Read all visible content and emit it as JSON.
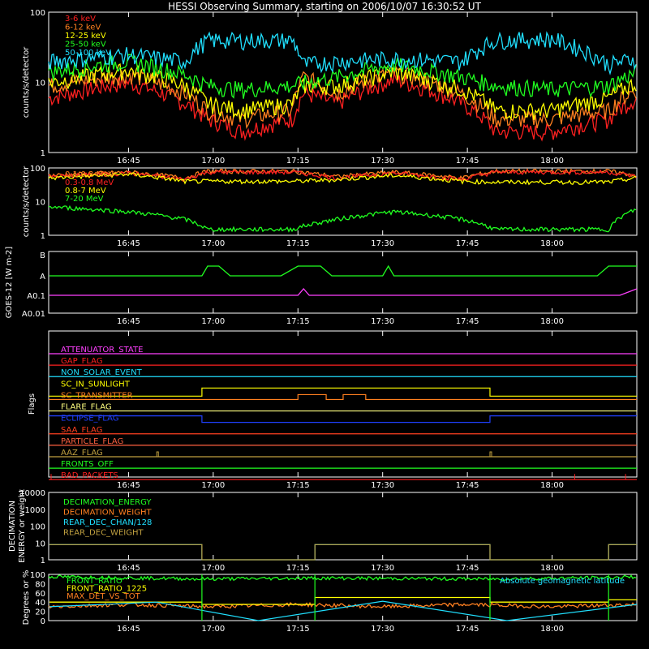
{
  "title": "HESSI Observing Summary, starting on 2006/10/07 16:30:52 UT",
  "time_ticks": [
    "16:45",
    "17:00",
    "17:15",
    "17:30",
    "17:45",
    "18:00"
  ],
  "chart_data": [
    {
      "type": "line",
      "ylabel": "counts/s/detector",
      "y_scale": "log",
      "ylim": [
        1,
        100
      ],
      "ytick_labels": [
        "1",
        "10",
        "100"
      ],
      "legend_placement": "top-left",
      "series": [
        {
          "name": "3-6 keV",
          "color": "#ff2020",
          "x": [
            "16:31",
            "16:45",
            "16:55",
            "16:59",
            "17:05",
            "17:14",
            "17:16",
            "17:22",
            "17:32",
            "17:44",
            "17:50",
            "18:00",
            "18:10",
            "18:15"
          ],
          "values": [
            6,
            10,
            5,
            3,
            2,
            3,
            7,
            5,
            11,
            5,
            2,
            2,
            3,
            6
          ]
        },
        {
          "name": "6-12 keV",
          "color": "#ff8020",
          "x": [
            "16:31",
            "16:45",
            "16:55",
            "16:59",
            "17:05",
            "17:14",
            "17:16",
            "17:22",
            "17:32",
            "17:44",
            "17:50",
            "18:00",
            "18:10",
            "18:15"
          ],
          "values": [
            9,
            13,
            7,
            4,
            3,
            4,
            12,
            7,
            14,
            7,
            3,
            3,
            4,
            8
          ]
        },
        {
          "name": "12-25 keV",
          "color": "#ffff00",
          "x": [
            "16:31",
            "16:45",
            "16:55",
            "16:59",
            "17:05",
            "17:14",
            "17:16",
            "17:22",
            "17:32",
            "17:44",
            "17:50",
            "18:00",
            "18:10",
            "18:15"
          ],
          "values": [
            10,
            15,
            9,
            5,
            4,
            5,
            9,
            9,
            14,
            8,
            4,
            4,
            6,
            10
          ]
        },
        {
          "name": "25-50 keV",
          "color": "#20ff20",
          "x": [
            "16:31",
            "16:45",
            "16:55",
            "16:59",
            "17:05",
            "17:14",
            "17:16",
            "17:22",
            "17:32",
            "17:44",
            "17:50",
            "18:00",
            "18:10",
            "18:15"
          ],
          "values": [
            14,
            20,
            13,
            9,
            8,
            9,
            10,
            12,
            18,
            12,
            9,
            8,
            9,
            14
          ]
        },
        {
          "name": "50-100 keV",
          "color": "#20e0ff",
          "x": [
            "16:31",
            "16:45",
            "16:55",
            "16:59",
            "17:05",
            "17:14",
            "17:16",
            "17:22",
            "17:32",
            "17:44",
            "17:50",
            "18:00",
            "18:10",
            "18:15"
          ],
          "values": [
            20,
            25,
            20,
            40,
            40,
            40,
            18,
            20,
            22,
            20,
            40,
            42,
            18,
            22
          ]
        }
      ]
    },
    {
      "type": "line",
      "ylabel": "counts/s/detector",
      "y_scale": "log",
      "ylim": [
        1,
        100
      ],
      "ytick_labels": [
        "1",
        "10",
        "100"
      ],
      "legend_placement": "top-left",
      "series": [
        {
          "name": "0.1-0.3 MeV",
          "color": "#ff8020",
          "x": [
            "16:31",
            "16:45",
            "16:55",
            "16:59",
            "17:14",
            "17:22",
            "17:32",
            "17:44",
            "17:50",
            "18:10",
            "18:15"
          ],
          "values": [
            60,
            75,
            50,
            80,
            80,
            55,
            75,
            50,
            80,
            80,
            60
          ]
        },
        {
          "name": "0.3-0.8 MeV",
          "color": "#ff2020",
          "x": [
            "16:31",
            "16:45",
            "16:55",
            "16:59",
            "17:14",
            "17:22",
            "17:32",
            "17:44",
            "17:50",
            "18:10",
            "18:15"
          ],
          "values": [
            55,
            70,
            45,
            75,
            75,
            50,
            70,
            45,
            75,
            75,
            55
          ]
        },
        {
          "name": "0.8-7 MeV",
          "color": "#ffff00",
          "x": [
            "16:31",
            "16:45",
            "16:55",
            "16:59",
            "17:14",
            "17:22",
            "17:32",
            "17:44",
            "17:50",
            "18:10",
            "18:15"
          ],
          "values": [
            50,
            65,
            40,
            40,
            40,
            45,
            60,
            40,
            38,
            38,
            50
          ]
        },
        {
          "name": "7-20 MeV",
          "color": "#20ff20",
          "x": [
            "16:31",
            "16:45",
            "16:55",
            "16:59",
            "17:14",
            "17:22",
            "17:32",
            "17:44",
            "17:50",
            "18:10",
            "18:15"
          ],
          "values": [
            7,
            5,
            3,
            1.5,
            1.5,
            3,
            5,
            3,
            1.5,
            1.5,
            6
          ]
        }
      ]
    },
    {
      "type": "line",
      "ylabel": "GOES-12 [W m-2]",
      "y_scale": "log",
      "ytick_labels": [
        "B",
        "A",
        "A0.1",
        "A0.01"
      ],
      "series": [
        {
          "color": "#20ff20",
          "x": [
            "16:31",
            "16:58",
            "16:59",
            "17:01",
            "17:03",
            "17:07",
            "17:12",
            "17:15",
            "17:19",
            "17:21",
            "17:30",
            "17:31",
            "17:32",
            "18:08",
            "18:10",
            "18:15"
          ],
          "values": [
            "A",
            "A",
            "A+",
            "A+",
            "A",
            "A",
            "A",
            "A+",
            "A+",
            "A",
            "A",
            "A+",
            "A",
            "A",
            "A+",
            "A+"
          ]
        },
        {
          "color": "#ff40ff",
          "x": [
            "16:31",
            "17:15",
            "17:16",
            "17:17",
            "18:12",
            "18:15"
          ],
          "values": [
            "A0.1",
            "A0.1",
            "A0.1+",
            "A0.1",
            "A0.1",
            "A0.1+"
          ]
        }
      ]
    },
    {
      "type": "table",
      "ylabel": "Flags",
      "flags": [
        {
          "name": "ATTENUATOR_STATE",
          "color": "#ff40ff"
        },
        {
          "name": "GAP_FLAG",
          "color": "#ff2020"
        },
        {
          "name": "NON_SOLAR_EVENT",
          "color": "#20e0ff"
        },
        {
          "name": "SC_IN_SUNLIGHT",
          "color": "#ffff00"
        },
        {
          "name": "SC_TRANSMITTER",
          "color": "#ff8020"
        },
        {
          "name": "FLARE_FLAG",
          "color": "#ffff80"
        },
        {
          "name": "ECLIPSE_FLAG",
          "color": "#2040ff"
        },
        {
          "name": "SAA_FLAG",
          "color": "#ff4020"
        },
        {
          "name": "PARTICLE_FLAG",
          "color": "#ff6040"
        },
        {
          "name": "AAZ_FLAG",
          "color": "#c0a040"
        },
        {
          "name": "FRONTS_OFF",
          "color": "#20ff20"
        },
        {
          "name": "BAD_PACKETS",
          "color": "#ff2020"
        }
      ]
    },
    {
      "type": "line",
      "ylabel": "DECIMATION ENERGY or weight",
      "y_scale": "log",
      "ylim": [
        1,
        10000
      ],
      "ytick_labels": [
        "1",
        "10",
        "100",
        "1000",
        "10000"
      ],
      "legend_placement": "top-left",
      "series": [
        {
          "name": "DECIMATION_ENERGY",
          "color": "#20ff20"
        },
        {
          "name": "DECIMATION_WEIGHT",
          "color": "#ff8020"
        },
        {
          "name": "REAR_DEC_CHAN/128",
          "color": "#20e0ff",
          "x": [
            "16:31",
            "16:58",
            "16:58",
            "17:18",
            "17:18",
            "17:49",
            "17:49",
            "18:10",
            "18:10",
            "18:15"
          ],
          "values": [
            8,
            8,
            1,
            1,
            8,
            8,
            1,
            1,
            8,
            8
          ]
        },
        {
          "name": "REAR_DEC_WEIGHT",
          "color": "#c0a040",
          "x": [
            "16:31",
            "16:58",
            "16:58",
            "17:18",
            "17:18",
            "17:49",
            "17:49",
            "18:10",
            "18:10",
            "18:15"
          ],
          "values": [
            8,
            8,
            1,
            1,
            8,
            8,
            1,
            1,
            8,
            8
          ]
        }
      ]
    },
    {
      "type": "line",
      "ylabel": "Degrees or %",
      "ylim": [
        0,
        100
      ],
      "ytick_labels": [
        "0",
        "20",
        "40",
        "60",
        "80",
        "100"
      ],
      "legend_placement": "top-left",
      "annotation": "Absolute geomagnetic latitude",
      "series": [
        {
          "name": "FRONT_RATIO",
          "color": "#20ff20",
          "x": [
            "16:31",
            "16:58",
            "17:18",
            "17:49",
            "18:10",
            "18:15"
          ],
          "values": [
            95,
            90,
            92,
            90,
            93,
            95
          ]
        },
        {
          "name": "FRONT_RATIO_1225",
          "color": "#ffff00",
          "x": [
            "16:31",
            "16:58",
            "16:58",
            "17:18",
            "17:18",
            "17:49",
            "17:49",
            "18:10",
            "18:10",
            "18:15"
          ],
          "values": [
            40,
            40,
            35,
            35,
            50,
            50,
            40,
            40,
            45,
            45
          ]
        },
        {
          "name": "MAX_DET_VS_TOT",
          "color": "#ff8020",
          "x": [
            "16:31",
            "16:45",
            "17:00",
            "17:15",
            "17:30",
            "17:45",
            "18:00",
            "18:15"
          ],
          "values": [
            30,
            35,
            30,
            35,
            30,
            35,
            30,
            35
          ]
        },
        {
          "color": "#20e0ff",
          "x": [
            "16:31",
            "16:50",
            "17:08",
            "17:30",
            "17:52",
            "18:15"
          ],
          "values": [
            30,
            40,
            0,
            42,
            0,
            35
          ]
        }
      ]
    }
  ]
}
